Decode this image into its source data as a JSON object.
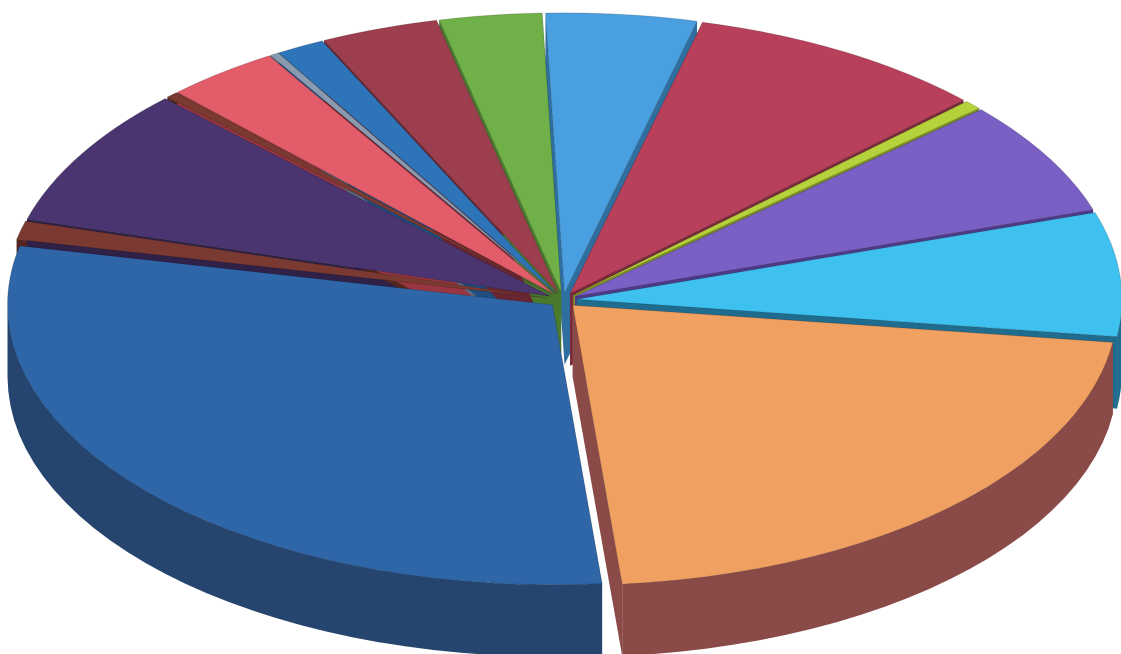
{
  "chart_data": {
    "type": "pie",
    "style": "3d-exploded",
    "title": "",
    "slices": [
      {
        "value": 5.0,
        "color": "#4a9fe0",
        "side": "#2f6f9f"
      },
      {
        "value": 10.0,
        "color": "#b8405a",
        "side": "#7a2a3a"
      },
      {
        "value": 0.6,
        "color": "#b5d23c",
        "side": "#7d9126"
      },
      {
        "value": 7.4,
        "color": "#7a5fc4",
        "side": "#4e3b87"
      },
      {
        "value": 8.0,
        "color": "#3fc1ef",
        "side": "#1f6c8e"
      },
      {
        "value": 24.0,
        "color": "#f0a060",
        "side": "#8a4a48"
      },
      {
        "value": 33.4,
        "color": "#2f66a8",
        "side": "#26456e"
      },
      {
        "value": 1.2,
        "color": "#7a3a32",
        "side": "#54261f"
      },
      {
        "value": 9.0,
        "color": "#4a3570",
        "side": "#2f2148"
      },
      {
        "value": 0.4,
        "color": "#7a3a32",
        "side": "#54261f"
      },
      {
        "value": 3.8,
        "color": "#e25c6a",
        "side": "#9a3642"
      },
      {
        "value": 0.3,
        "color": "#8a9ab0",
        "side": "#5a6a80"
      },
      {
        "value": 1.6,
        "color": "#2e74b8",
        "side": "#1f4f80"
      },
      {
        "value": 3.9,
        "color": "#9c3e4e",
        "side": "#6a2532"
      },
      {
        "value": 3.4,
        "color": "#70b048",
        "side": "#4a7a2e"
      }
    ]
  }
}
